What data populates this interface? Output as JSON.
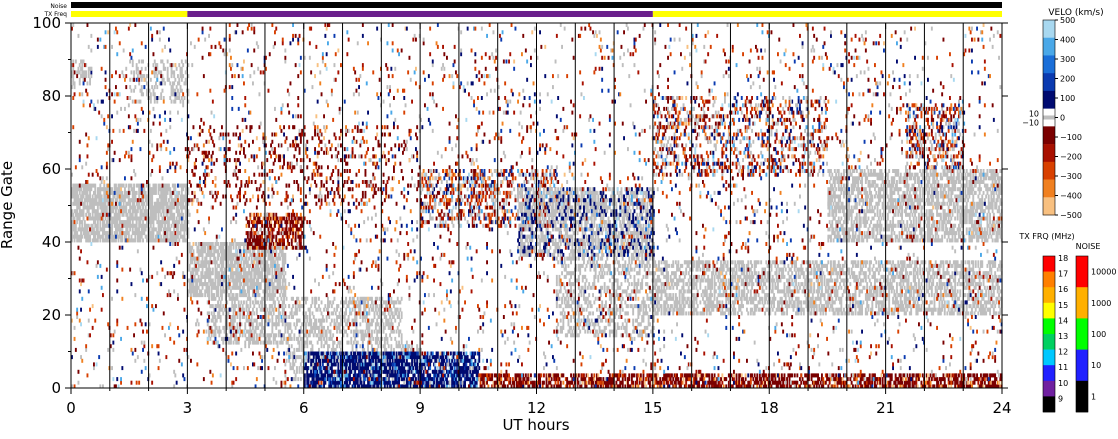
{
  "header": {
    "noise_label": "Noise",
    "txfreq_label": "TX Freq"
  },
  "chart_data": {
    "type": "heatmap",
    "xlabel": "UT hours",
    "ylabel": "Range Gate",
    "x_ticks": [
      "0",
      "3",
      "6",
      "9",
      "12",
      "15",
      "18",
      "21",
      "24"
    ],
    "y_ticks": [
      "0",
      "20",
      "40",
      "60",
      "80",
      "100"
    ],
    "xlim": [
      0,
      24
    ],
    "ylim": [
      0,
      100
    ],
    "scan_boundaries_hours": [
      1,
      2,
      3,
      4,
      5,
      6,
      7,
      8,
      9,
      10,
      11,
      12,
      13,
      14,
      15,
      16,
      17,
      18,
      19,
      20,
      21,
      22,
      23
    ],
    "tx_freq_bar": [
      {
        "from": 0,
        "to": 3,
        "color": "#ffff00"
      },
      {
        "from": 3,
        "to": 15,
        "color": "#6a1f8c"
      },
      {
        "from": 15,
        "to": 24,
        "color": "#ffff00"
      }
    ],
    "velocity_scale": {
      "title": "VELO (km/s)",
      "ticks": [
        "500",
        "400",
        "300",
        "200",
        "100",
        "0",
        "−100",
        "−200",
        "−300",
        "−400",
        "−500"
      ],
      "ground_scatter_ticks": [
        "10",
        "−10"
      ],
      "colors": [
        "#a8d8f0",
        "#4aa8e8",
        "#1a6ed8",
        "#0a3ab0",
        "#000a70",
        "#ffffff",
        "#7a0000",
        "#a81000",
        "#d84000",
        "#f08020",
        "#f8c080"
      ],
      "ground_scatter_color": "#bebebe"
    },
    "txfreq_scale": {
      "title": "TX FRQ (MHz)",
      "ticks": [
        "18",
        "17",
        "16",
        "15",
        "14",
        "13",
        "12",
        "11",
        "10",
        "9"
      ],
      "colors": [
        "#ff0000",
        "#ff7f00",
        "#ffb000",
        "#ffff00",
        "#00ff00",
        "#00d060",
        "#00c8ff",
        "#2020ff",
        "#7020a0",
        "#000000"
      ]
    },
    "noise_scale": {
      "title": "NOISE",
      "ticks": [
        "10000",
        "1000",
        "100",
        "10",
        "1"
      ],
      "colors": [
        "#ff0000",
        "#ffb000",
        "#00ff00",
        "#2020ff",
        "#000000"
      ]
    },
    "echo_regions": [
      {
        "t0": 0.0,
        "t1": 3.0,
        "g0": 40,
        "g1": 56,
        "type": "ground",
        "density": 0.75
      },
      {
        "t0": 1.5,
        "t1": 3.0,
        "g0": 78,
        "g1": 90,
        "type": "ground",
        "density": 0.3
      },
      {
        "t0": 0.0,
        "t1": 0.5,
        "g0": 83,
        "g1": 90,
        "type": "ground",
        "density": 0.4
      },
      {
        "t0": 3.0,
        "t1": 5.5,
        "g0": 25,
        "g1": 40,
        "type": "ground",
        "density": 0.7
      },
      {
        "t0": 4.5,
        "t1": 6.0,
        "g0": 38,
        "g1": 48,
        "type": "neg",
        "density": 0.55
      },
      {
        "t0": 3.5,
        "t1": 8.5,
        "g0": 12,
        "g1": 25,
        "type": "ground",
        "density": 0.45
      },
      {
        "t0": 5.5,
        "t1": 9.0,
        "g0": 2,
        "g1": 12,
        "type": "ground",
        "density": 0.35
      },
      {
        "t0": 6.0,
        "t1": 10.5,
        "g0": 0,
        "g1": 10,
        "type": "pos",
        "density": 0.7
      },
      {
        "t0": 10.5,
        "t1": 24.0,
        "g0": 0,
        "g1": 4,
        "type": "neg",
        "density": 0.6
      },
      {
        "t0": 9.0,
        "t1": 12.5,
        "g0": 44,
        "g1": 60,
        "type": "mixed",
        "density": 0.35
      },
      {
        "t0": 11.5,
        "t1": 15.0,
        "g0": 36,
        "g1": 55,
        "type": "ground",
        "density": 0.55
      },
      {
        "t0": 11.5,
        "t1": 15.0,
        "g0": 36,
        "g1": 55,
        "type": "pos",
        "density": 0.15
      },
      {
        "t0": 12.5,
        "t1": 15.0,
        "g0": 14,
        "g1": 36,
        "type": "ground",
        "density": 0.35
      },
      {
        "t0": 15.0,
        "t1": 24.0,
        "g0": 20,
        "g1": 35,
        "type": "ground",
        "density": 0.5
      },
      {
        "t0": 19.5,
        "t1": 24.0,
        "g0": 40,
        "g1": 60,
        "type": "ground",
        "density": 0.55
      },
      {
        "t0": 15.0,
        "t1": 19.5,
        "g0": 58,
        "g1": 80,
        "type": "mixed",
        "density": 0.25
      },
      {
        "t0": 21.5,
        "t1": 23.0,
        "g0": 60,
        "g1": 78,
        "type": "mixed",
        "density": 0.35
      },
      {
        "t0": 3.0,
        "t1": 9.0,
        "g0": 50,
        "g1": 72,
        "type": "neg",
        "density": 0.12
      },
      {
        "t0": 0.0,
        "t1": 24.0,
        "g0": 0,
        "g1": 100,
        "type": "mixed",
        "density": 0.05
      }
    ]
  }
}
